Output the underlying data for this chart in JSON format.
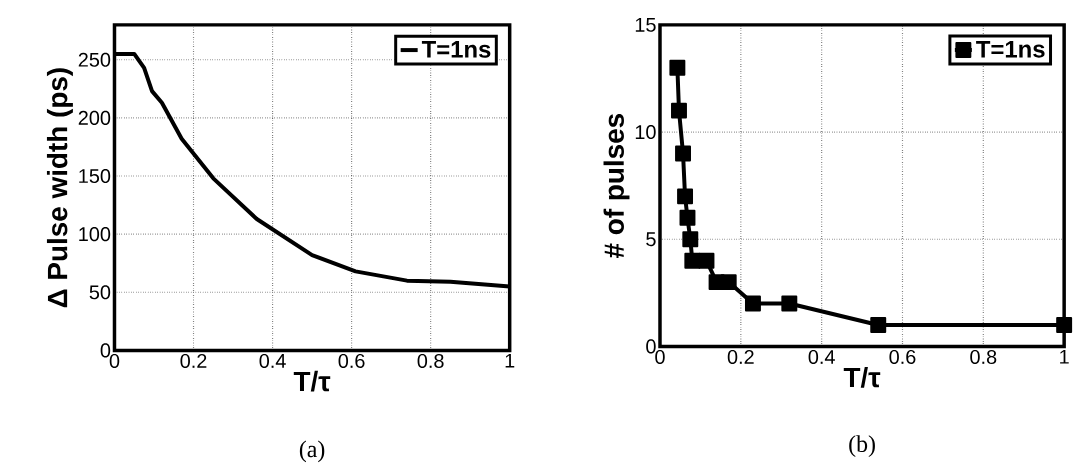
{
  "chart_data": [
    {
      "type": "line",
      "xlabel": "T/τ",
      "ylabel": "Δ Pulse width  (ps)",
      "annotations": [
        "(a)"
      ],
      "x": [
        0,
        0.05,
        0.075,
        0.095,
        0.12,
        0.17,
        0.25,
        0.36,
        0.5,
        0.61,
        0.74,
        0.85,
        1
      ],
      "series": [
        {
          "name": "T=1ns",
          "color": "#000000",
          "values": [
            255,
            255,
            243,
            223,
            213,
            182,
            148,
            113,
            82,
            68,
            60,
            59,
            55
          ]
        }
      ],
      "xlim": [
        0,
        1
      ],
      "ylim": [
        0,
        280
      ],
      "xticks": [
        0,
        0.2,
        0.4,
        0.6,
        0.8,
        1
      ],
      "yticks": [
        0,
        50,
        100,
        150,
        200,
        250
      ],
      "grid": true,
      "legend": "top right",
      "marker": "none",
      "line_style": "solid"
    },
    {
      "type": "line",
      "xlabel": "T/τ",
      "ylabel": "# of pulses",
      "annotations": [
        "(b)"
      ],
      "x": [
        0.043,
        0.047,
        0.057,
        0.062,
        0.068,
        0.075,
        0.08,
        0.115,
        0.14,
        0.17,
        0.23,
        0.32,
        0.54,
        1
      ],
      "series": [
        {
          "name": "T=1ns",
          "color": "#000000",
          "values": [
            13,
            11,
            9,
            7,
            6,
            5,
            4,
            4,
            3,
            3,
            2,
            2,
            1,
            1
          ]
        }
      ],
      "xlim": [
        0,
        1
      ],
      "ylim": [
        0,
        15
      ],
      "xticks": [
        0,
        0.2,
        0.4,
        0.6,
        0.8,
        1
      ],
      "yticks": [
        0,
        5,
        10,
        15
      ],
      "grid": true,
      "legend": "top right",
      "marker": "square",
      "line_style": "solid"
    }
  ]
}
